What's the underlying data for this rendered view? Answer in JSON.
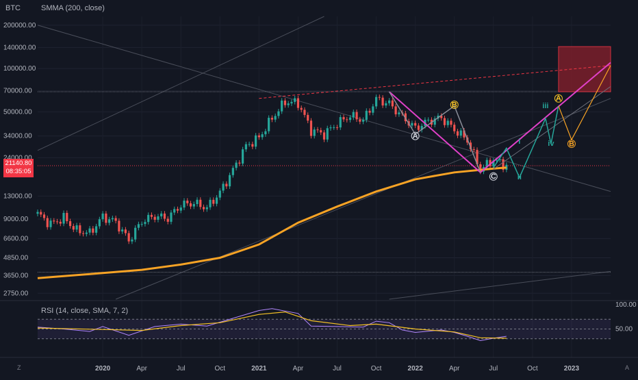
{
  "header": {
    "symbol": "BTC"
  },
  "indicators": {
    "smma_label": "SMMA (200, close)",
    "rsi_label": "RSI (14, close, SMA, 7, 2)"
  },
  "last_price": {
    "price": "21140.80",
    "countdown": "08:35:05"
  },
  "corner_buttons": {
    "left": "Z",
    "right": "A"
  },
  "colors": {
    "background": "#131722",
    "up": "#26a69a",
    "down": "#ef5350",
    "smma": "#f7a325",
    "pink": "#e040c8",
    "teal": "#26a69a",
    "gray": "#787b86",
    "rsi_line": "#b388ff",
    "rsi_sma": "#f7c325",
    "box": "#7b1f2b",
    "box_border": "#f23645",
    "trend": "#f23645"
  },
  "chart_data": {
    "type": "candlestick",
    "scale": "log",
    "price_ticks": [
      "200000.00",
      "140000.00",
      "100000.00",
      "70000.00",
      "50000.00",
      "34000.00",
      "24000.00",
      "13000.00",
      "9000.00",
      "6600.00",
      "4850.00",
      "3650.00",
      "2750.00"
    ],
    "price_tick_values": [
      200000,
      140000,
      100000,
      70000,
      50000,
      34000,
      24000,
      13000,
      9000,
      6600,
      4850,
      3650,
      2750
    ],
    "time_labels": [
      "2020",
      "Apr",
      "Jul",
      "Oct",
      "2021",
      "Apr",
      "Jul",
      "Oct",
      "2022",
      "Apr",
      "Jul",
      "Oct",
      "2023"
    ],
    "time_label_dates": [
      "2020-01",
      "2020-04",
      "2020-07",
      "2020-10",
      "2021-01",
      "2021-04",
      "2021-07",
      "2021-10",
      "2022-01",
      "2022-04",
      "2022-07",
      "2022-10",
      "2023-01"
    ],
    "y_range": [
      2500,
      230000
    ],
    "x_range": [
      "2019-08",
      "2023-04"
    ],
    "horizontal_levels": [
      69000,
      21140.8,
      3850
    ],
    "closes": [
      [
        "2019-08",
        9800
      ],
      [
        "2019-09",
        8300
      ],
      [
        "2019-10",
        9200
      ],
      [
        "2019-11",
        7500
      ],
      [
        "2019-12",
        7200
      ],
      [
        "2020-01",
        9350
      ],
      [
        "2020-02",
        8600
      ],
      [
        "2020-03",
        6400
      ],
      [
        "2020-04",
        8700
      ],
      [
        "2020-05",
        9450
      ],
      [
        "2020-06",
        9140
      ],
      [
        "2020-07",
        11300
      ],
      [
        "2020-08",
        11650
      ],
      [
        "2020-09",
        10780
      ],
      [
        "2020-10",
        13800
      ],
      [
        "2020-11",
        19700
      ],
      [
        "2020-12",
        29000
      ],
      [
        "2021-01",
        33100
      ],
      [
        "2021-02",
        45200
      ],
      [
        "2021-03",
        58800
      ],
      [
        "2021-04",
        57700
      ],
      [
        "2021-05",
        37300
      ],
      [
        "2021-06",
        35000
      ],
      [
        "2021-07",
        41500
      ],
      [
        "2021-08",
        47100
      ],
      [
        "2021-09",
        43800
      ],
      [
        "2021-10",
        61300
      ],
      [
        "2021-11",
        57000
      ],
      [
        "2021-12",
        46300
      ],
      [
        "2022-01",
        38500
      ],
      [
        "2022-02",
        43200
      ],
      [
        "2022-03",
        45500
      ],
      [
        "2022-04",
        37700
      ],
      [
        "2022-05",
        31800
      ],
      [
        "2022-06",
        19900
      ],
      [
        "2022-07",
        23300
      ],
      [
        "2022-08",
        21140.8
      ]
    ],
    "smma": [
      [
        "2019-08",
        3500
      ],
      [
        "2020-01",
        3800
      ],
      [
        "2020-04",
        4000
      ],
      [
        "2020-07",
        4350
      ],
      [
        "2020-10",
        4850
      ],
      [
        "2021-01",
        6000
      ],
      [
        "2021-04",
        8500
      ],
      [
        "2021-07",
        11000
      ],
      [
        "2021-10",
        14000
      ],
      [
        "2022-01",
        17000
      ],
      [
        "2022-04",
        19000
      ],
      [
        "2022-07",
        20200
      ],
      [
        "2022-08",
        20500
      ]
    ],
    "waves": {
      "abc": [
        {
          "label": "A",
          "date": "2022-01",
          "value": 34000,
          "color": "#d1d4dc"
        },
        {
          "label": "B",
          "date": "2022-04",
          "value": 56000,
          "color": "#f7c325"
        },
        {
          "label": "C",
          "date": "2022-07",
          "value": 17800,
          "color": "#d1d4dc"
        },
        {
          "label": "A",
          "date": "2022-12",
          "value": 62000,
          "color": "#f7c325"
        },
        {
          "label": "B",
          "date": "2023-01",
          "value": 30000,
          "color": "#f7a325"
        }
      ],
      "impulse": [
        {
          "label": "i",
          "date": "2022-09",
          "value": 30000
        },
        {
          "label": "ii",
          "date": "2022-09",
          "value": 17000
        },
        {
          "label": "iii",
          "date": "2022-11",
          "value": 53000
        },
        {
          "label": "iv",
          "date": "2022-11",
          "value": 29000
        }
      ]
    },
    "rsi": {
      "range": [
        0,
        100
      ],
      "levels": [
        70,
        50,
        30
      ],
      "ticks": [
        "100.00",
        "50.00"
      ],
      "tick_values": [
        100,
        50
      ],
      "values": [
        [
          "2019-08",
          54
        ],
        [
          "2019-10",
          50
        ],
        [
          "2019-12",
          45
        ],
        [
          "2020-01",
          55
        ],
        [
          "2020-03",
          37
        ],
        [
          "2020-05",
          55
        ],
        [
          "2020-07",
          60
        ],
        [
          "2020-09",
          56
        ],
        [
          "2020-11",
          72
        ],
        [
          "2021-01",
          88
        ],
        [
          "2021-02",
          92
        ],
        [
          "2021-04",
          82
        ],
        [
          "2021-05",
          56
        ],
        [
          "2021-07",
          55
        ],
        [
          "2021-09",
          54
        ],
        [
          "2021-10",
          66
        ],
        [
          "2021-11",
          63
        ],
        [
          "2021-12",
          48
        ],
        [
          "2022-01",
          43
        ],
        [
          "2022-03",
          48
        ],
        [
          "2022-04",
          43
        ],
        [
          "2022-05",
          35
        ],
        [
          "2022-06",
          26
        ],
        [
          "2022-07",
          31
        ],
        [
          "2022-08",
          35
        ]
      ],
      "sma": [
        [
          "2019-08",
          52
        ],
        [
          "2020-01",
          49
        ],
        [
          "2020-04",
          47
        ],
        [
          "2020-07",
          57
        ],
        [
          "2020-10",
          63
        ],
        [
          "2021-01",
          80
        ],
        [
          "2021-03",
          85
        ],
        [
          "2021-05",
          67
        ],
        [
          "2021-08",
          57
        ],
        [
          "2021-10",
          60
        ],
        [
          "2022-01",
          50
        ],
        [
          "2022-04",
          44
        ],
        [
          "2022-06",
          32
        ],
        [
          "2022-08",
          31
        ]
      ]
    }
  }
}
